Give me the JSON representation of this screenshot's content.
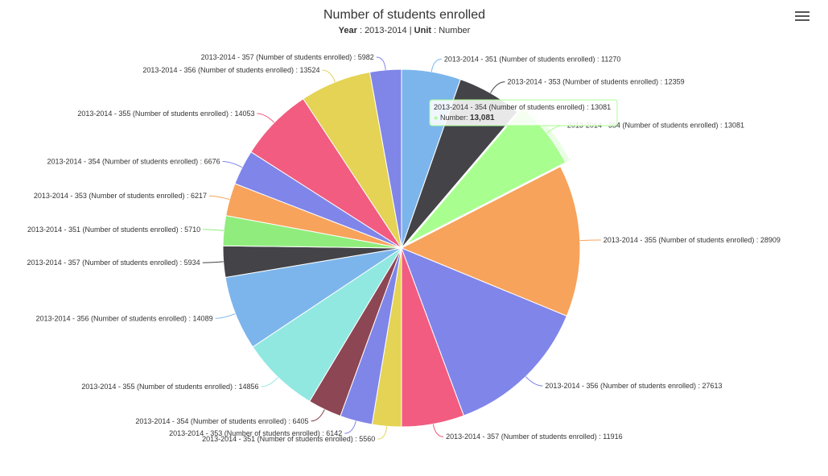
{
  "header": {
    "menu_icon": "hamburger-menu-icon"
  },
  "subtitle": {
    "year_key": "Year",
    "year_value": "2013-2014",
    "unit_key": "Unit",
    "unit_value": "Number",
    "separator": "|"
  },
  "tooltip": {
    "title": "2013-2014 - 354 (Number of students enrolled) : 13081",
    "series_label": "Number:",
    "value_text": "13,081"
  },
  "chart_data": {
    "type": "pie",
    "title": "Number of students enrolled",
    "slices": [
      {
        "label": "2013-2014 - 351 (Number of students enrolled) : 11270",
        "value": 11270,
        "color": "#7cb5ec"
      },
      {
        "label": "2013-2014 - 353 (Number of students enrolled) : 12359",
        "value": 12359,
        "color": "#434348"
      },
      {
        "label": "2013-2014 - 354 (Number of students enrolled) : 13081",
        "value": 13081,
        "color": "#a8ff8f"
      },
      {
        "label": "2013-2014 - 355 (Number of students enrolled) : 28909",
        "value": 28909,
        "color": "#f7a35c"
      },
      {
        "label": "2013-2014 - 356 (Number of students enrolled) : 27613",
        "value": 27613,
        "color": "#8085e9"
      },
      {
        "label": "2013-2014 - 357 (Number of students enrolled) : 11916",
        "value": 11916,
        "color": "#f15c80"
      },
      {
        "label": "2013-2014 - 351 (Number of students enrolled) : 5560",
        "value": 5560,
        "color": "#e4d354"
      },
      {
        "label": "2013-2014 - 353 (Number of students enrolled) : 6142",
        "value": 6142,
        "color": "#8085e8"
      },
      {
        "label": "2013-2014 - 354 (Number of students enrolled) : 6405",
        "value": 6405,
        "color": "#8d4653"
      },
      {
        "label": "2013-2014 - 355 (Number of students enrolled) : 14856",
        "value": 14856,
        "color": "#91e8e1"
      },
      {
        "label": "2013-2014 - 356 (Number of students enrolled) : 14089",
        "value": 14089,
        "color": "#7cb5ec"
      },
      {
        "label": "2013-2014 - 357 (Number of students enrolled) : 5934",
        "value": 5934,
        "color": "#434348"
      },
      {
        "label": "2013-2014 - 351 (Number of students enrolled) : 5710",
        "value": 5710,
        "color": "#90ed7d"
      },
      {
        "label": "2013-2014 - 353 (Number of students enrolled) : 6217",
        "value": 6217,
        "color": "#f7a35c"
      },
      {
        "label": "2013-2014 - 354 (Number of students enrolled) : 6676",
        "value": 6676,
        "color": "#8085e9"
      },
      {
        "label": "2013-2014 - 355 (Number of students enrolled) : 14053",
        "value": 14053,
        "color": "#f15c80"
      },
      {
        "label": "2013-2014 - 356 (Number of students enrolled) : 13524",
        "value": 13524,
        "color": "#e4d354"
      },
      {
        "label": "2013-2014 - 357 (Number of students enrolled) : 5982",
        "value": 5982,
        "color": "#8085e8"
      }
    ],
    "hovered_slice": 2
  }
}
